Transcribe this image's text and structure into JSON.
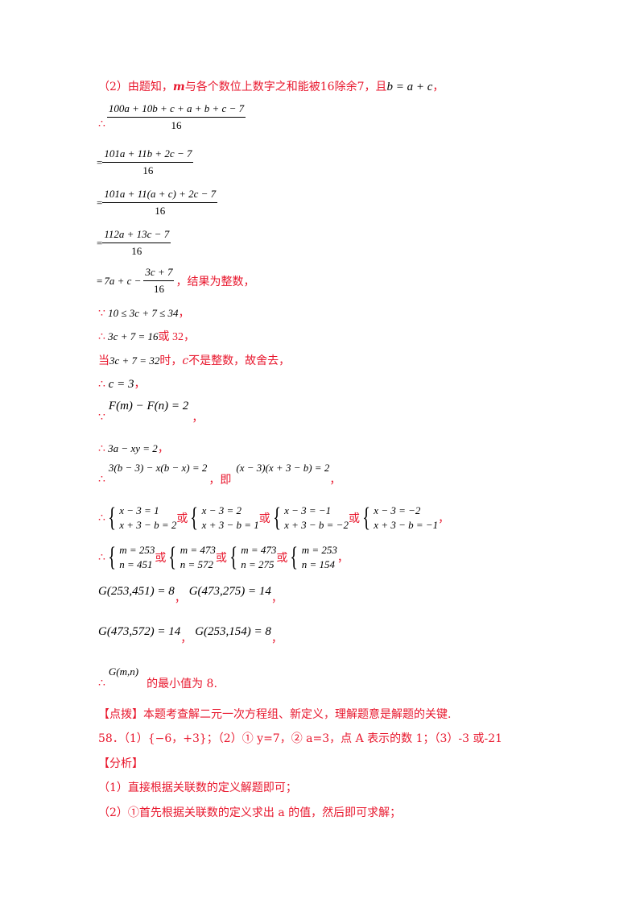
{
  "line1": {
    "prefix": "（2）由题知，",
    "m": "m",
    "middle": "与各个数位上数字之和能被16除余7，且",
    "eq": "b = a + c",
    "suffix": "，"
  },
  "therefore": "∴",
  "because": "∵",
  "equals": "=",
  "comma": "，",
  "or": "或",
  "step1": {
    "num": "100a + 10b + c + a + b + c − 7",
    "den": "16"
  },
  "step2": {
    "num": "101a + 11b + 2c − 7",
    "den": "16"
  },
  "step3": {
    "num": "101a + 11(a + c) + 2c − 7",
    "den": "16"
  },
  "step4": {
    "num": "112a + 13c − 7",
    "den": "16"
  },
  "step5": {
    "lead": "7a + c −",
    "num": "3c + 7",
    "den": "16",
    "note": "，结果为整数，"
  },
  "ineq": "10 ≤ 3c + 7 ≤ 34",
  "ineq_suffix": "，",
  "val_eq": "3c + 7 = 16",
  "val_tail": "或 32，",
  "when_prefix": "当",
  "when_eq": "3c + 7 = 32",
  "when_mid": "时，",
  "when_c": "c",
  "when_tail": "不是整数，故舍去，",
  "c_eq": "c = 3",
  "F_eq": "F(m) − F(n) = 2",
  "a_eq": "3a − xy = 2",
  "b_eq1": "3(b − 3) − x(b − x) = 2",
  "ji": "，即",
  "b_eq2": "(x − 3)(x + 3 − b) = 2",
  "systems_xb": [
    [
      "x − 3 = 1",
      "x + 3 − b = 2"
    ],
    [
      "x − 3 = 2",
      "x + 3 − b = 1"
    ],
    [
      "x − 3 = −1",
      "x + 3 − b = −2"
    ],
    [
      "x − 3 = −2",
      "x + 3 − b = −1"
    ]
  ],
  "systems_mn": [
    [
      "m = 253",
      "n = 451"
    ],
    [
      "m = 473",
      "n = 572"
    ],
    [
      "m = 473",
      "n = 275"
    ],
    [
      "m = 253",
      "n = 154"
    ]
  ],
  "g_row1": [
    "G(253,451) = 8",
    "G(473,275) = 14"
  ],
  "g_row2": [
    "G(473,572) = 14",
    "G(253,154) = 8"
  ],
  "gmn": "G(m,n)",
  "min_text": "的最小值为 8.",
  "dianbo": "【点拨】本题考查解二元一次方程组、新定义，理解题意是解题的关键.",
  "q58": "58．（1）{−6，+3}；（2）① y=7，② a=3，点 A 表示的数 1；（3）-3 或-21",
  "fenxi": "【分析】",
  "analysis1": "（1）直接根据关联数的定义解题即可；",
  "analysis2": "（2）①首先根据关联数的定义求出 a 的值，然后即可求解；",
  "colors": {
    "accent_red": "#e8162c",
    "text": "#000000"
  }
}
